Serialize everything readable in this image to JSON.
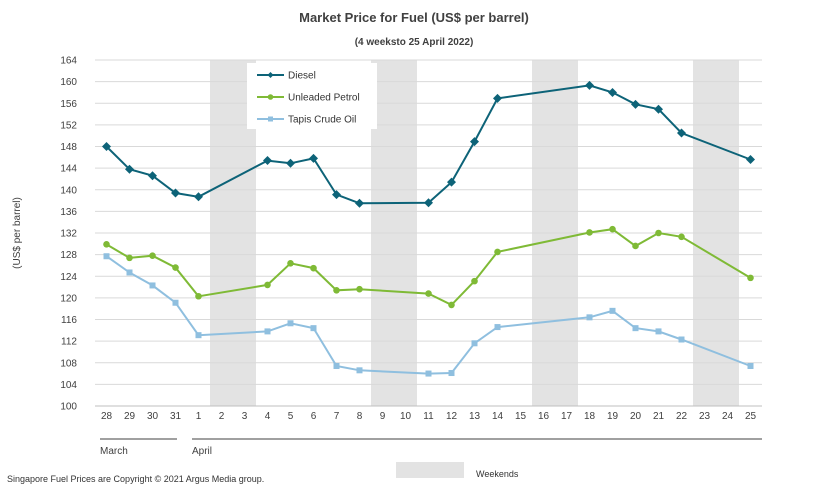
{
  "chart_data": {
    "type": "line",
    "title": "Market Price for Fuel (US$ per barrel)",
    "subtitle": "(4 weeksto 25 April 2022)",
    "ylabel": "(US$ per barrel)",
    "xlabel": "",
    "ylim": [
      100,
      164
    ],
    "y_step": 4,
    "grid": true,
    "legend_position": "top-left",
    "categories": [
      "28",
      "29",
      "30",
      "31",
      "1",
      "2",
      "3",
      "4",
      "5",
      "6",
      "7",
      "8",
      "9",
      "10",
      "11",
      "12",
      "13",
      "14",
      "15",
      "16",
      "17",
      "18",
      "19",
      "20",
      "21",
      "22",
      "23",
      "24",
      "25"
    ],
    "month_groups": [
      {
        "label": "March",
        "start": 0,
        "end": 3
      },
      {
        "label": "April",
        "start": 4,
        "end": 28
      }
    ],
    "weekend_bands": [
      [
        5,
        6
      ],
      [
        12,
        13
      ],
      [
        19,
        20
      ],
      [
        26,
        27
      ]
    ],
    "weekend_label": "Weekends",
    "weekend_color": "#e3e3e3",
    "series": [
      {
        "name": "Diesel",
        "color": "#0d6378",
        "marker": "diamond",
        "values": [
          148.0,
          143.8,
          142.6,
          139.4,
          138.7,
          null,
          null,
          145.4,
          144.9,
          145.8,
          139.1,
          137.5,
          null,
          null,
          137.6,
          141.4,
          148.9,
          156.9,
          null,
          null,
          null,
          159.3,
          158.0,
          155.8,
          154.9,
          150.5,
          null,
          null,
          145.6
        ]
      },
      {
        "name": "Unleaded Petrol",
        "color": "#7fba36",
        "marker": "circle",
        "values": [
          129.9,
          127.4,
          127.8,
          125.6,
          120.3,
          null,
          null,
          122.4,
          126.4,
          125.5,
          121.4,
          121.6,
          null,
          null,
          120.8,
          118.7,
          123.1,
          128.5,
          null,
          null,
          null,
          132.1,
          132.7,
          129.6,
          132.0,
          131.3,
          null,
          null,
          123.7
        ]
      },
      {
        "name": "Tapis Crude Oil",
        "color": "#8fbfdf",
        "marker": "square",
        "values": [
          127.7,
          124.7,
          122.3,
          119.1,
          113.1,
          null,
          null,
          113.8,
          115.3,
          114.4,
          107.4,
          106.6,
          null,
          null,
          106.0,
          106.1,
          111.6,
          114.6,
          null,
          null,
          null,
          116.4,
          117.6,
          114.4,
          113.8,
          112.3,
          null,
          null,
          107.4
        ]
      }
    ]
  },
  "footer": {
    "copyright": "Singapore Fuel Prices are Copyright © 2021 Argus Media group."
  }
}
